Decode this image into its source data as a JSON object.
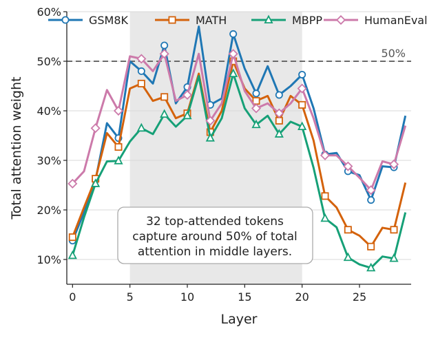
{
  "chart_data": {
    "type": "line",
    "xlabel": "Layer",
    "ylabel": "Total attention weight",
    "xlim": [
      -0.5,
      29.5
    ],
    "ylim": [
      5,
      60
    ],
    "x_ticks": [
      0,
      5,
      10,
      15,
      20,
      25
    ],
    "y_ticks": [
      {
        "value": 10,
        "label": "10%"
      },
      {
        "value": 20,
        "label": "20%"
      },
      {
        "value": 30,
        "label": "30%"
      },
      {
        "value": 40,
        "label": "40%"
      },
      {
        "value": 50,
        "label": "50%"
      },
      {
        "value": 60,
        "label": "60%"
      }
    ],
    "grid": "horizontal",
    "shaded_region": [
      5,
      20
    ],
    "reference_line": {
      "y": 50,
      "label": "50%"
    },
    "annotation": [
      "32 top-attended tokens",
      "capture around 50% of total",
      "attention in middle layers."
    ],
    "legend_position": "top",
    "marker_every": 2,
    "x": [
      0,
      1,
      2,
      3,
      4,
      5,
      6,
      7,
      8,
      9,
      10,
      11,
      12,
      13,
      14,
      15,
      16,
      17,
      18,
      19,
      20,
      21,
      22,
      23,
      24,
      25,
      26,
      27,
      28,
      29
    ],
    "series": [
      {
        "name": "GSM8K",
        "color": "#1f77b4",
        "marker": "circle",
        "values": [
          13.8,
          19.5,
          26,
          37.5,
          34.5,
          50,
          48,
          45.5,
          53.2,
          41.5,
          44.8,
          57,
          41.2,
          42.5,
          55.5,
          48.5,
          43.5,
          49,
          43.2,
          45,
          47.3,
          40.5,
          31.2,
          31.5,
          27.8,
          27,
          22,
          28.8,
          28.6,
          39
        ]
      },
      {
        "name": "MATH",
        "color": "#d4620b",
        "marker": "square",
        "values": [
          14.5,
          20.5,
          26.3,
          35.5,
          32.7,
          44.5,
          45.5,
          42,
          42.8,
          38.5,
          39.5,
          47.5,
          35.7,
          40,
          50,
          44.5,
          42,
          43,
          38,
          43,
          41.2,
          34,
          22.8,
          20.5,
          16,
          14.8,
          12.6,
          16.4,
          16,
          25.5
        ]
      },
      {
        "name": "MBPP",
        "color": "#16a077",
        "marker": "triangle",
        "values": [
          10.8,
          18.5,
          25.3,
          29.8,
          29.9,
          33.8,
          36.5,
          35.3,
          39.3,
          36.8,
          39,
          47,
          34.5,
          38.5,
          47.5,
          40.5,
          37.2,
          39,
          35.3,
          37.8,
          36.8,
          28.5,
          18.3,
          16.5,
          10.4,
          9,
          8.3,
          10.6,
          10.2,
          19.5
        ]
      },
      {
        "name": "HumanEval",
        "color": "#cc7aaa",
        "marker": "diamond",
        "values": [
          25.3,
          27.8,
          36.5,
          44.2,
          40,
          51,
          50.5,
          48,
          51.5,
          42,
          43.2,
          51.5,
          38,
          41.5,
          51.5,
          44,
          40.5,
          41.5,
          39.5,
          41.5,
          44.5,
          38.5,
          31,
          31,
          28.8,
          26.5,
          24,
          29.8,
          29.2,
          37
        ]
      }
    ]
  }
}
